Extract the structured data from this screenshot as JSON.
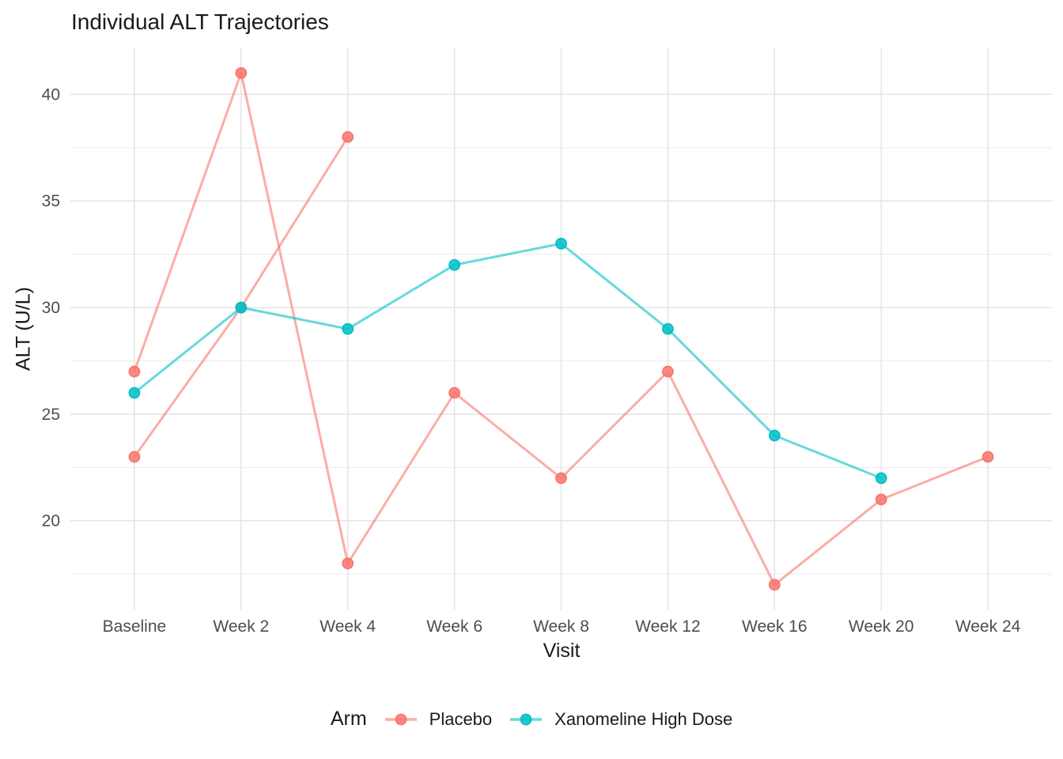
{
  "chart_data": {
    "type": "line",
    "title": "Individual ALT Trajectories",
    "xlabel": "Visit",
    "ylabel": "ALT (U/L)",
    "categories": [
      "Baseline",
      "Week 2",
      "Week 4",
      "Week 6",
      "Week 8",
      "Week 12",
      "Week 16",
      "Week 20",
      "Week 24"
    ],
    "yticks": [
      20,
      25,
      30,
      35,
      40
    ],
    "y_minor_ticks": [
      17.5,
      22.5,
      27.5,
      32.5,
      37.5
    ],
    "ylim": [
      15.8,
      42.2
    ],
    "grid": "on",
    "legend": {
      "title": "Arm",
      "position": "bottom",
      "entries": [
        {
          "label": "Placebo",
          "color": "#F8766D"
        },
        {
          "label": "Xanomeline High Dose",
          "color": "#00BFC4"
        }
      ]
    },
    "series": [
      {
        "name": "placebo-trajectory-a",
        "arm": "Placebo",
        "color": "#F8766D",
        "values": [
          27,
          41,
          18,
          26,
          22,
          27,
          17,
          21,
          23
        ]
      },
      {
        "name": "placebo-trajectory-b",
        "arm": "Placebo",
        "color": "#F8766D",
        "values": [
          23,
          30,
          38,
          null,
          null,
          null,
          null,
          null,
          null
        ]
      },
      {
        "name": "xanomeline-high-dose-trajectory",
        "arm": "Xanomeline High Dose",
        "color": "#00BFC4",
        "values": [
          26,
          30,
          29,
          32,
          33,
          29,
          24,
          22,
          null
        ]
      }
    ]
  },
  "colors": {
    "grid_major": "#E2E2E2",
    "grid_minor": "#ECECEC",
    "axis_text": "#4D4D4D",
    "title_text": "#1A1A1A"
  }
}
